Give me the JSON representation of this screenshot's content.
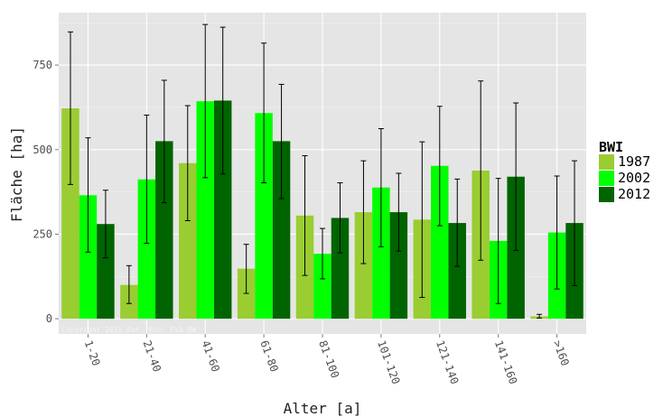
{
  "chart_data": {
    "type": "bar",
    "xlabel": "Alter [a]",
    "ylabel": "Fläche [ha]",
    "ylim": [
      -45,
      905
    ],
    "yticks": [
      0,
      250,
      500,
      750
    ],
    "grid": true,
    "legend_position": "right",
    "legend_title": "BWI",
    "watermark": "Copyright 2015 Abt. Bio. FVA BW",
    "categories": [
      "1-20",
      "21-40",
      "41-60",
      "61-80",
      "81-100",
      "101-120",
      "121-140",
      "141-160",
      ">160"
    ],
    "series": [
      {
        "name": "1987",
        "color": "#9acd32",
        "values": [
          622,
          100,
          460,
          148,
          305,
          315,
          293,
          438,
          7
        ],
        "error_low": [
          397,
          45,
          290,
          75,
          128,
          163,
          63,
          173,
          2
        ],
        "error_high": [
          848,
          157,
          630,
          220,
          482,
          467,
          523,
          703,
          13
        ]
      },
      {
        "name": "2002",
        "color": "#00ff00",
        "values": [
          365,
          412,
          643,
          608,
          192,
          388,
          452,
          230,
          255
        ],
        "error_low": [
          197,
          223,
          417,
          402,
          118,
          213,
          275,
          45,
          88
        ],
        "error_high": [
          535,
          602,
          870,
          815,
          267,
          562,
          628,
          415,
          422
        ]
      },
      {
        "name": "2012",
        "color": "#006400",
        "values": [
          280,
          525,
          645,
          525,
          298,
          315,
          283,
          420,
          283
        ],
        "error_low": [
          180,
          343,
          428,
          355,
          195,
          200,
          155,
          202,
          98
        ],
        "error_high": [
          380,
          705,
          862,
          693,
          402,
          430,
          413,
          638,
          467
        ]
      }
    ]
  }
}
